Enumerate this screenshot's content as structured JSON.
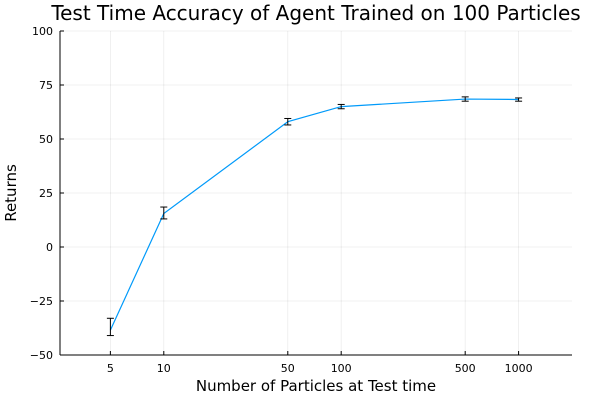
{
  "chart_data": {
    "type": "line",
    "title": "Test Time Accuracy of Agent Trained on 100 Particles",
    "xlabel": "Number of Particles at Test time",
    "ylabel": "Returns",
    "xscale": "log10",
    "xlim": [
      2.6,
      2000
    ],
    "ylim": [
      -50,
      100
    ],
    "xticks": [
      5,
      10,
      50,
      100,
      500,
      1000
    ],
    "yticks": [
      -50,
      -25,
      0,
      25,
      50,
      75,
      100
    ],
    "ytick_labels": [
      "−50",
      "−25",
      "0",
      "25",
      "50",
      "75",
      "100"
    ],
    "grid": true,
    "legend": "none",
    "series": [
      {
        "color": "#009AFA",
        "x": [
          5,
          10,
          50,
          100,
          500,
          1000
        ],
        "y": [
          -38.5,
          15.5,
          58,
          65,
          68.5,
          68.3
        ],
        "yerr_low": [
          -41,
          13,
          56.5,
          64,
          67.5,
          67.5
        ],
        "yerr_high": [
          -33,
          18.5,
          59.5,
          66,
          69.5,
          69
        ]
      }
    ]
  }
}
